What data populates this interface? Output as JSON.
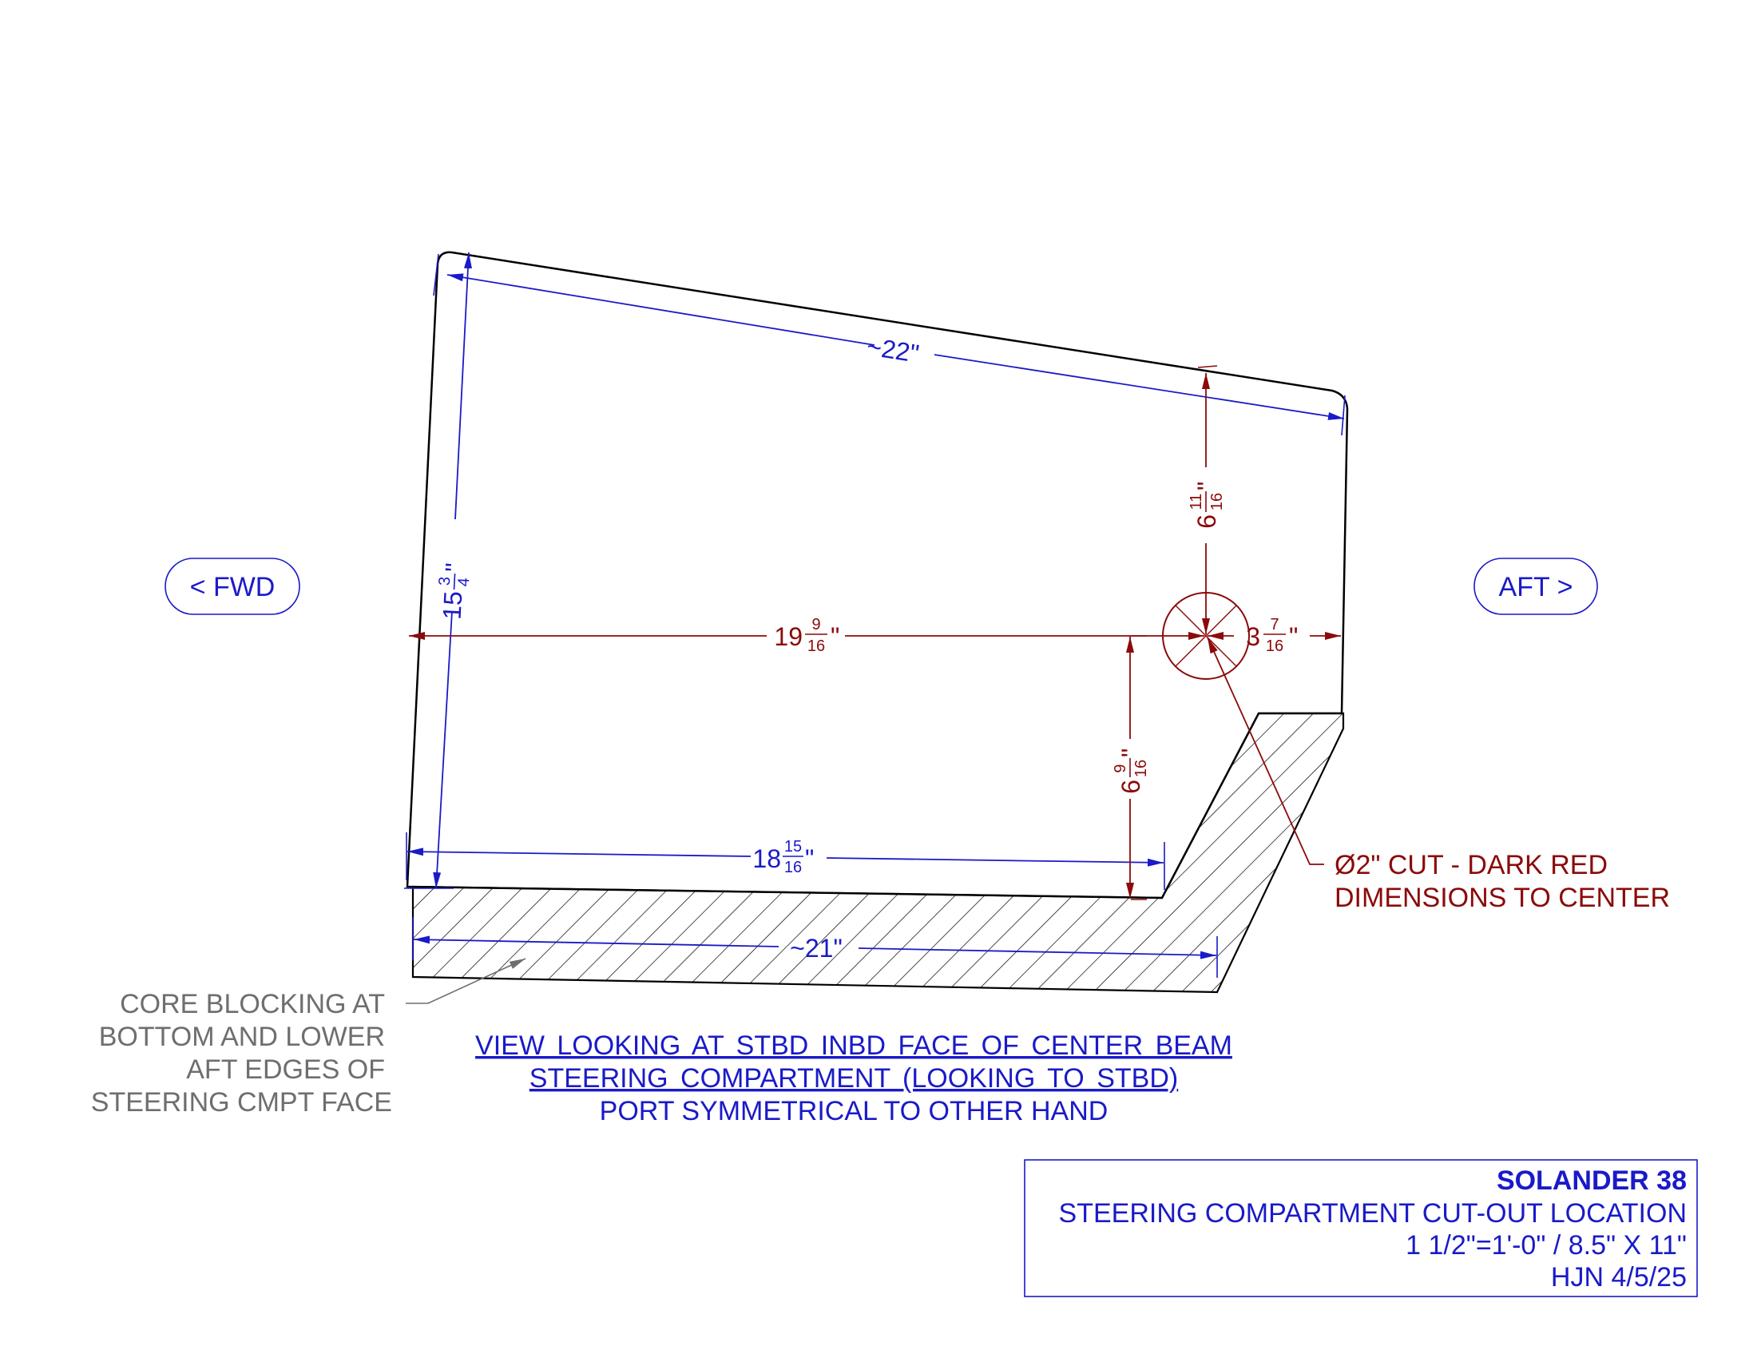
{
  "labels": {
    "fwd": "< FWD",
    "aft": "AFT >"
  },
  "dimensions": {
    "top_edge": "~22\"",
    "left_height": {
      "whole": "15",
      "num": "3",
      "den": "4",
      "unit": "\""
    },
    "to_center_from_fwd": {
      "whole": "19",
      "num": "9",
      "den": "16",
      "unit": "\""
    },
    "to_aft_edge": {
      "whole": "3",
      "num": "7",
      "den": "16",
      "unit": "\""
    },
    "center_to_top": {
      "whole": "6",
      "num": "11",
      "den": "16",
      "unit": "\""
    },
    "center_to_bottom": {
      "whole": "6",
      "num": "9",
      "den": "16",
      "unit": "\""
    },
    "bottom_inner": {
      "whole": "18",
      "num": "15",
      "den": "16",
      "unit": "\""
    },
    "bottom_outer": "~21\""
  },
  "cut_note": {
    "line1": "Ø2\" CUT - DARK RED",
    "line2": "DIMENSIONS TO CENTER"
  },
  "core_note": {
    "line1": "CORE BLOCKING AT",
    "line2": "BOTTOM AND LOWER",
    "line3": "AFT EDGES OF",
    "line4": "STEERING CMPT FACE"
  },
  "view_caption": {
    "line1": "VIEW LOOKING AT STBD INBD FACE OF CENTER BEAM",
    "line2": "STEERING COMPARTMENT (LOOKING TO STBD)",
    "line3": "PORT SYMMETRICAL TO OTHER HAND"
  },
  "title_block": {
    "project": "SOLANDER 38",
    "title": "STEERING COMPARTMENT CUT-OUT LOCATION",
    "scale": "1 1/2\"=1'-0\" / 8.5\" X 11\"",
    "author_date": "HJN 4/5/25"
  },
  "colors": {
    "dimension_blue": "#1a1ac8",
    "cut_red": "#8b0a0a",
    "note_grey": "#6e6e6e",
    "outline": "#000000"
  }
}
